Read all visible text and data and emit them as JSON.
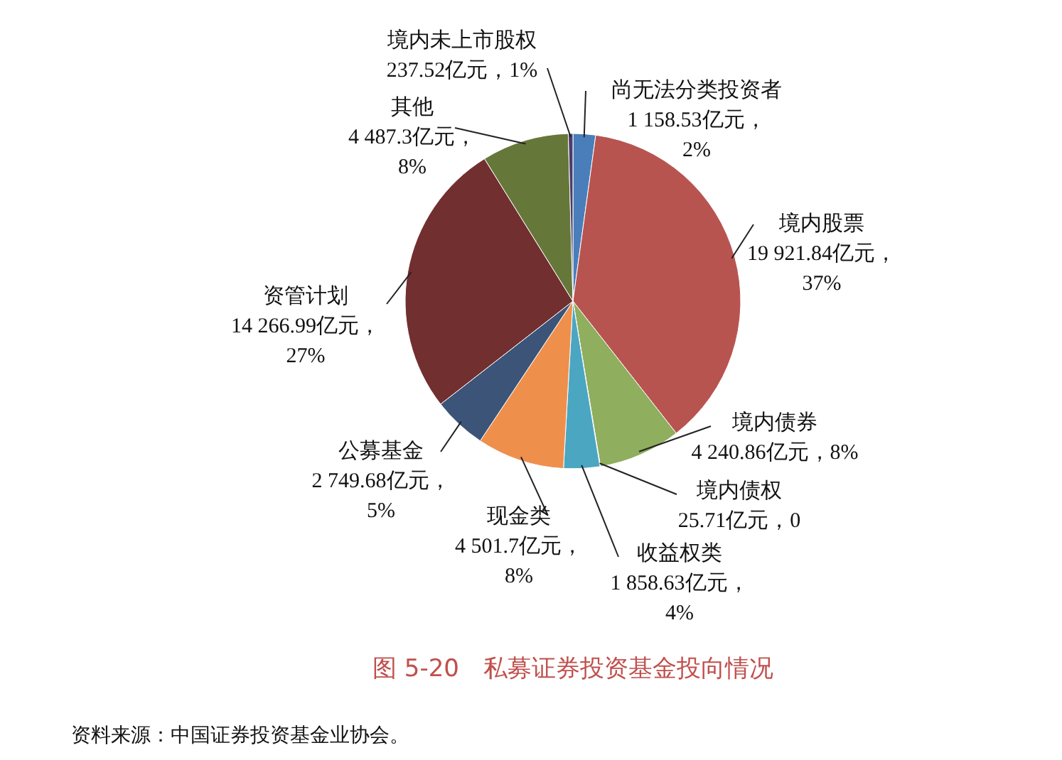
{
  "chart_data": {
    "type": "pie",
    "title": "图 5-20　私募证券投资基金投向情况",
    "categories": [
      "尚无法分类投资者",
      "境内股票",
      "境内债券",
      "境内债权",
      "收益权类",
      "现金类",
      "公募基金",
      "资管计划",
      "其他",
      "境内未上市股权"
    ],
    "values": [
      1158.53,
      19921.84,
      4240.86,
      25.71,
      1858.63,
      4501.7,
      2749.68,
      14266.99,
      4487.3,
      237.52
    ],
    "value_labels": [
      "1 158.53亿元，\n2%",
      "19 921.84亿元，\n37%",
      "4 240.86亿元，8%",
      "25.71亿元，0",
      "1 858.63亿元，\n4%",
      "4 501.7亿元，\n8%",
      "2 749.68亿元，\n5%",
      "14 266.99亿元，\n27%",
      "4 487.3亿元，\n8%",
      "237.52亿元，1%"
    ],
    "colors": [
      "#4a7ebb",
      "#b85450",
      "#8fae5e",
      "#3f6fa8",
      "#4ba6c2",
      "#ef8f4c",
      "#3b5478",
      "#722f30",
      "#66773a",
      "#4a3c6a"
    ],
    "annotations": [
      "资料来源：中国证券投资基金业协会。"
    ]
  }
}
